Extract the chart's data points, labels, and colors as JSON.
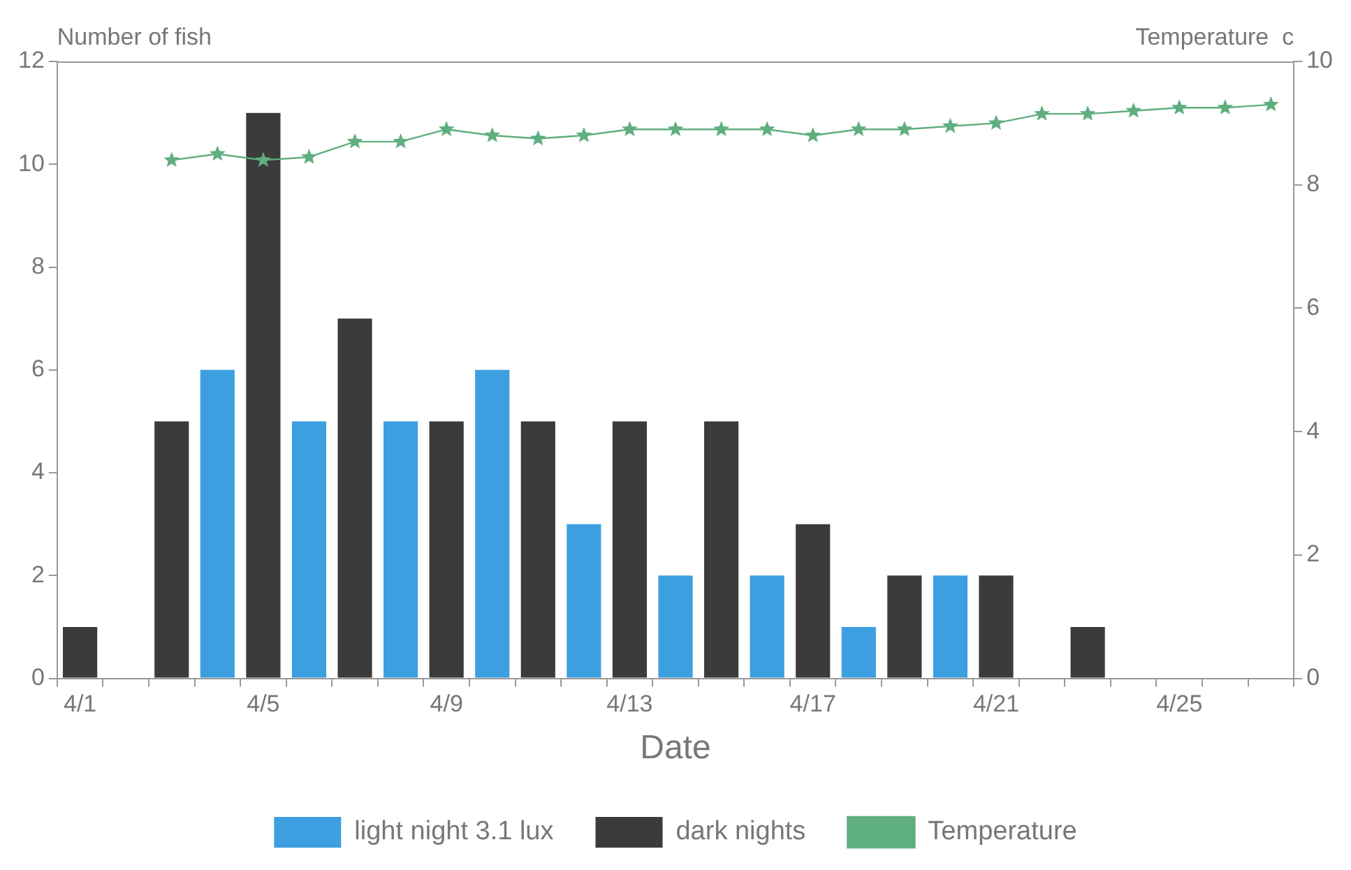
{
  "chart_data": {
    "type": "bar",
    "xlabel": "Date",
    "ylabel": "Number of fish",
    "y2label": "Temperature  c",
    "categories": [
      "4/1",
      null,
      null,
      null,
      "4/5",
      null,
      null,
      null,
      "4/9",
      null,
      null,
      null,
      "4/13",
      null,
      null,
      null,
      "4/17",
      null,
      null,
      null,
      "4/21",
      null,
      null,
      null,
      "4/25",
      null,
      null
    ],
    "series": [
      {
        "name": "light night 3.1 lux",
        "color": "#3d9fe0",
        "values": [
          null,
          null,
          null,
          6,
          null,
          5,
          null,
          5,
          null,
          6,
          null,
          3,
          null,
          2,
          null,
          2,
          null,
          1,
          null,
          2,
          null,
          null,
          null,
          null,
          null,
          null,
          null
        ]
      },
      {
        "name": "dark nights",
        "color": "#3b3b3b",
        "values": [
          1,
          null,
          5,
          null,
          11,
          null,
          7,
          null,
          5,
          null,
          5,
          null,
          5,
          null,
          5,
          null,
          3,
          null,
          2,
          null,
          2,
          null,
          1,
          null,
          null,
          null,
          null
        ]
      },
      {
        "name": "Temperature",
        "type": "line",
        "axis": "y2",
        "color": "#5fae7f",
        "marker": "star",
        "values": [
          null,
          null,
          8.4,
          8.5,
          8.4,
          8.45,
          8.7,
          8.7,
          8.9,
          8.8,
          8.75,
          8.8,
          8.9,
          8.9,
          8.9,
          8.9,
          8.8,
          8.9,
          8.9,
          8.95,
          9.0,
          9.15,
          9.15,
          9.2,
          9.25,
          9.25,
          9.3
        ]
      }
    ],
    "ylim": [
      0,
      12
    ],
    "yticks": [
      0,
      2,
      4,
      6,
      8,
      10,
      12
    ],
    "y2lim": [
      0,
      10
    ],
    "y2ticks": [
      0,
      2,
      4,
      6,
      8,
      10
    ],
    "grid": false,
    "legend": "bottom"
  }
}
